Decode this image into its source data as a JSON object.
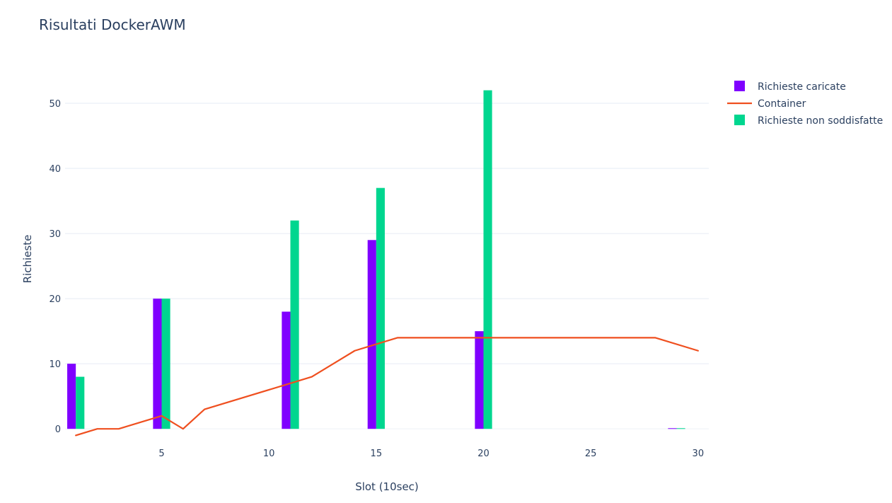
{
  "chart_data": {
    "type": "bar",
    "title": "Risultati DockerAWM",
    "xlabel": "Slot (10sec)",
    "ylabel": "Richieste",
    "xlim": [
      0.5,
      30.5
    ],
    "ylim": [
      -1.5,
      55
    ],
    "x_ticks": [
      5,
      10,
      15,
      20,
      25,
      30
    ],
    "y_ticks": [
      0,
      10,
      20,
      30,
      40,
      50
    ],
    "grid": "horizontal",
    "legend_position": "top-right",
    "series": [
      {
        "name": "Richieste caricate",
        "type": "bar",
        "color": "#7f00ff",
        "x": [
          1,
          5,
          11,
          15,
          20,
          29
        ],
        "values": [
          10,
          20,
          18,
          29,
          15,
          0.1
        ]
      },
      {
        "name": "Container",
        "type": "line",
        "color": "#ef4f1f",
        "x": [
          1,
          2,
          3,
          5,
          6,
          7,
          11,
          12,
          14,
          16,
          20,
          28,
          30
        ],
        "values": [
          -1,
          0,
          0,
          2,
          0,
          3,
          7,
          8,
          12,
          14,
          14,
          14,
          12
        ]
      },
      {
        "name": "Richieste non soddisfatte",
        "type": "bar",
        "color": "#00d68f",
        "x": [
          1,
          5,
          11,
          15,
          20,
          29
        ],
        "values": [
          8,
          20,
          32,
          37,
          52,
          0.1
        ]
      }
    ]
  }
}
